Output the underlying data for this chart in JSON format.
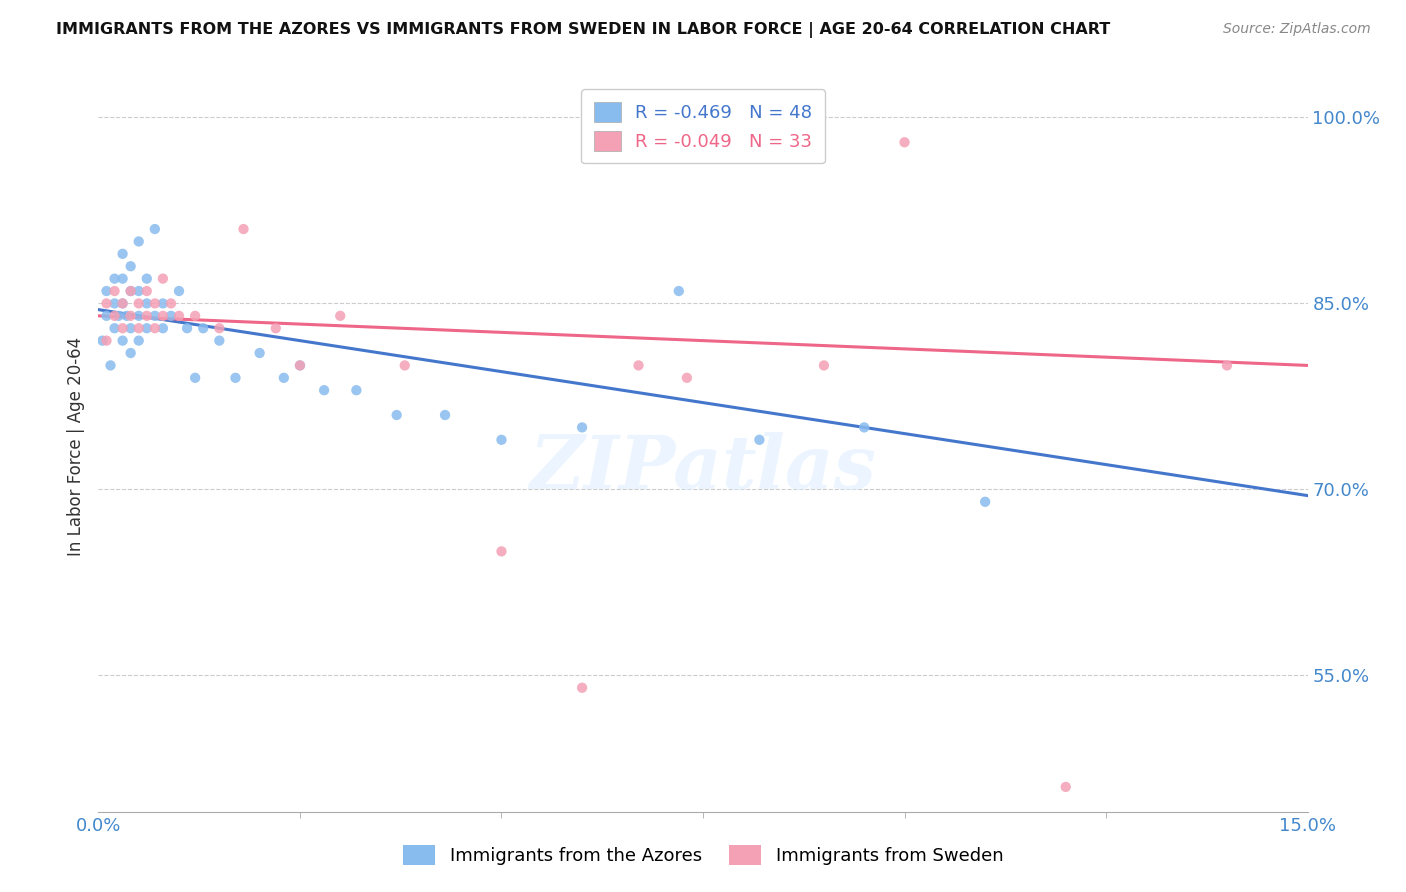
{
  "title": "IMMIGRANTS FROM THE AZORES VS IMMIGRANTS FROM SWEDEN IN LABOR FORCE | AGE 20-64 CORRELATION CHART",
  "source": "Source: ZipAtlas.com",
  "ylabel": "In Labor Force | Age 20-64",
  "xlim": [
    0.0,
    0.15
  ],
  "ylim": [
    0.44,
    1.03
  ],
  "yticks": [
    0.55,
    0.7,
    0.85,
    1.0
  ],
  "ytick_labels": [
    "55.0%",
    "70.0%",
    "85.0%",
    "100.0%"
  ],
  "xticks": [
    0.0,
    0.15
  ],
  "xtick_labels": [
    "0.0%",
    "15.0%"
  ],
  "azores_R": "-0.469",
  "azores_N": "48",
  "sweden_R": "-0.049",
  "sweden_N": "33",
  "azores_color": "#88bbee",
  "sweden_color": "#f4a0b5",
  "azores_line_color": "#4477cc",
  "sweden_line_color": "#ee6688",
  "watermark": "ZIPatlas",
  "azores_x": [
    0.0005,
    0.001,
    0.001,
    0.0015,
    0.002,
    0.002,
    0.002,
    0.0025,
    0.003,
    0.003,
    0.003,
    0.003,
    0.0035,
    0.004,
    0.004,
    0.004,
    0.004,
    0.005,
    0.005,
    0.005,
    0.005,
    0.006,
    0.006,
    0.006,
    0.007,
    0.007,
    0.008,
    0.008,
    0.009,
    0.01,
    0.011,
    0.012,
    0.013,
    0.015,
    0.017,
    0.02,
    0.023,
    0.025,
    0.028,
    0.032,
    0.037,
    0.043,
    0.05,
    0.06,
    0.072,
    0.082,
    0.095,
    0.11
  ],
  "azores_y": [
    0.82,
    0.84,
    0.86,
    0.8,
    0.83,
    0.85,
    0.87,
    0.84,
    0.82,
    0.85,
    0.87,
    0.89,
    0.84,
    0.81,
    0.83,
    0.86,
    0.88,
    0.82,
    0.84,
    0.86,
    0.9,
    0.83,
    0.85,
    0.87,
    0.84,
    0.91,
    0.83,
    0.85,
    0.84,
    0.86,
    0.83,
    0.79,
    0.83,
    0.82,
    0.79,
    0.81,
    0.79,
    0.8,
    0.78,
    0.78,
    0.76,
    0.76,
    0.74,
    0.75,
    0.86,
    0.74,
    0.75,
    0.69
  ],
  "sweden_x": [
    0.001,
    0.001,
    0.002,
    0.002,
    0.003,
    0.003,
    0.004,
    0.004,
    0.005,
    0.005,
    0.006,
    0.006,
    0.007,
    0.007,
    0.008,
    0.008,
    0.009,
    0.01,
    0.012,
    0.015,
    0.018,
    0.022,
    0.025,
    0.03,
    0.038,
    0.05,
    0.06,
    0.067,
    0.073,
    0.09,
    0.1,
    0.12,
    0.14
  ],
  "sweden_y": [
    0.82,
    0.85,
    0.84,
    0.86,
    0.85,
    0.83,
    0.84,
    0.86,
    0.83,
    0.85,
    0.84,
    0.86,
    0.83,
    0.85,
    0.84,
    0.87,
    0.85,
    0.84,
    0.84,
    0.83,
    0.91,
    0.83,
    0.8,
    0.84,
    0.8,
    0.65,
    0.54,
    0.8,
    0.79,
    0.8,
    0.98,
    0.46,
    0.8
  ],
  "azores_trend_x": [
    0.0,
    0.15
  ],
  "azores_trend_y": [
    0.845,
    0.695
  ],
  "sweden_trend_x": [
    0.0,
    0.15
  ],
  "sweden_trend_y": [
    0.84,
    0.8
  ]
}
